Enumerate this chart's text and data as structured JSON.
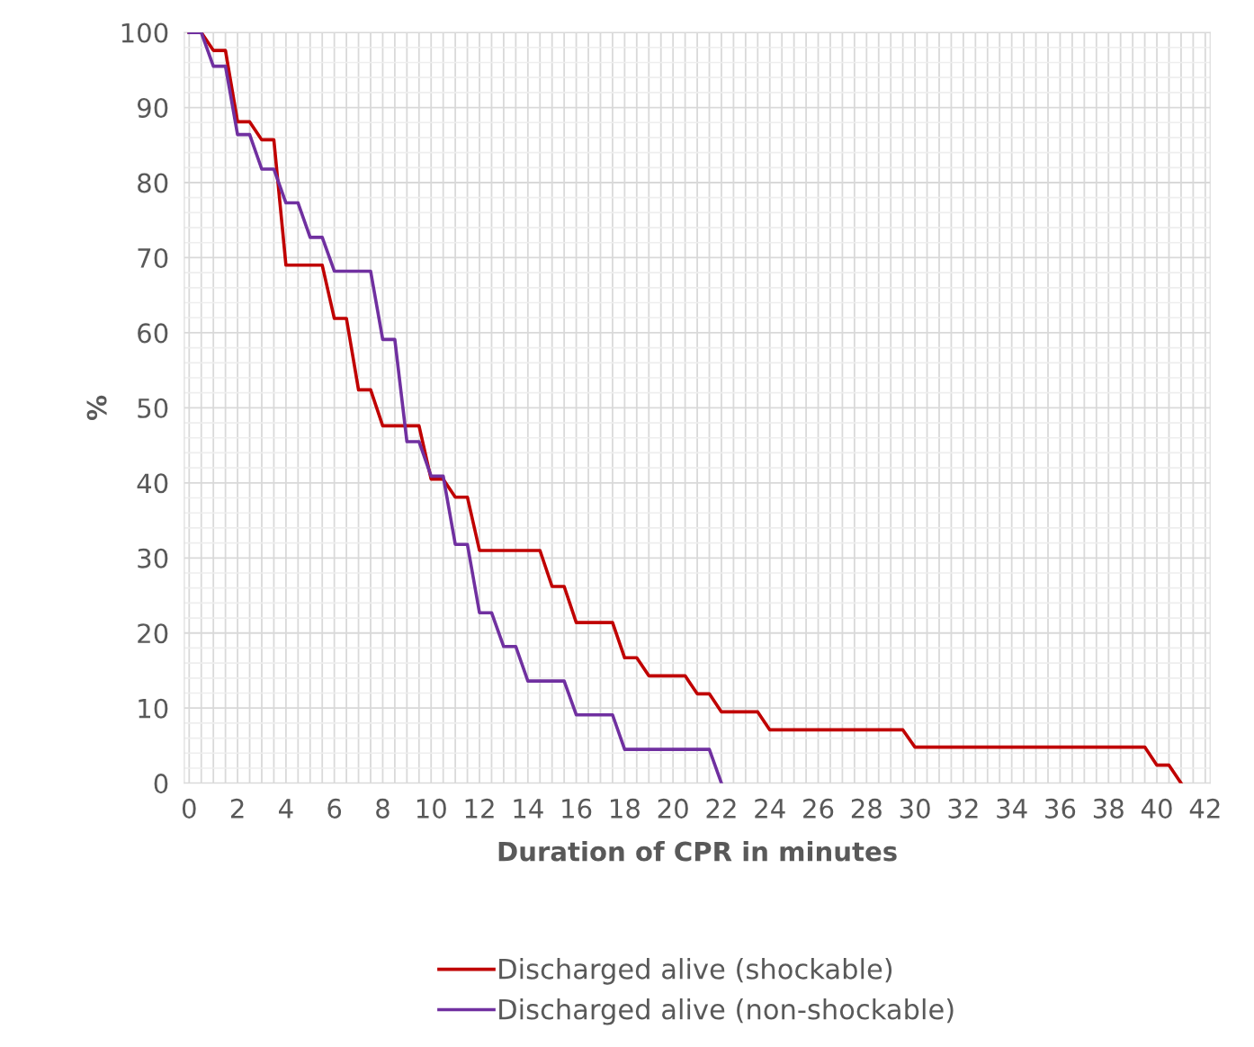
{
  "chart_data": {
    "type": "line",
    "xlabel": "Duration of CPR in minutes",
    "ylabel": "%",
    "xlim": [
      -0.2,
      42.2
    ],
    "xticks": [
      0,
      2,
      4,
      6,
      8,
      10,
      12,
      14,
      16,
      18,
      20,
      22,
      24,
      26,
      28,
      30,
      32,
      34,
      36,
      38,
      40,
      42
    ],
    "ylim": [
      0,
      100
    ],
    "yticks": [
      0,
      10,
      20,
      30,
      40,
      50,
      60,
      70,
      80,
      90,
      100
    ],
    "grid": true,
    "legend": "bottom",
    "line_style": "solid",
    "marker": "none",
    "series": [
      {
        "name": "Discharged alive (shockable)",
        "color": "#c00000",
        "x": [
          0,
          0.5,
          1,
          1.5,
          2,
          2.5,
          3,
          3.5,
          4,
          5.5,
          6,
          6.5,
          7,
          7.5,
          8,
          9.5,
          10,
          10.5,
          11,
          11.5,
          12,
          14.5,
          15,
          15.5,
          16,
          17.5,
          18,
          18.5,
          19,
          20.5,
          21,
          21.5,
          22,
          23.5,
          24,
          29.5,
          30,
          39.5,
          40,
          40.5,
          41
        ],
        "values": [
          100,
          100,
          97.6,
          97.6,
          88.1,
          88.1,
          85.7,
          85.7,
          69.0,
          69.0,
          61.9,
          61.9,
          52.4,
          52.4,
          47.6,
          47.6,
          40.5,
          40.5,
          38.1,
          38.1,
          31.0,
          31.0,
          26.2,
          26.2,
          21.4,
          21.4,
          16.7,
          16.7,
          14.3,
          14.3,
          11.9,
          11.9,
          9.5,
          9.5,
          7.1,
          7.1,
          4.8,
          4.8,
          2.4,
          2.4,
          0
        ]
      },
      {
        "name": "Discharged alive (non-shockable)",
        "color": "#7030a0",
        "x": [
          0,
          0.5,
          1,
          1.5,
          2,
          2.5,
          3,
          3.5,
          4,
          4.5,
          5,
          5.5,
          6,
          7.5,
          8,
          8.5,
          9,
          9.5,
          10,
          10.5,
          11,
          11.5,
          12,
          12.5,
          13,
          13.5,
          14,
          15.5,
          16,
          17.5,
          18,
          21.5,
          22
        ],
        "values": [
          100,
          100,
          95.5,
          95.5,
          86.4,
          86.4,
          81.8,
          81.8,
          77.3,
          77.3,
          72.7,
          72.7,
          68.2,
          68.2,
          59.1,
          59.1,
          45.5,
          45.5,
          40.9,
          40.9,
          31.8,
          31.8,
          22.7,
          22.7,
          18.2,
          18.2,
          13.6,
          13.6,
          9.1,
          9.1,
          4.5,
          4.5,
          0
        ]
      }
    ]
  }
}
